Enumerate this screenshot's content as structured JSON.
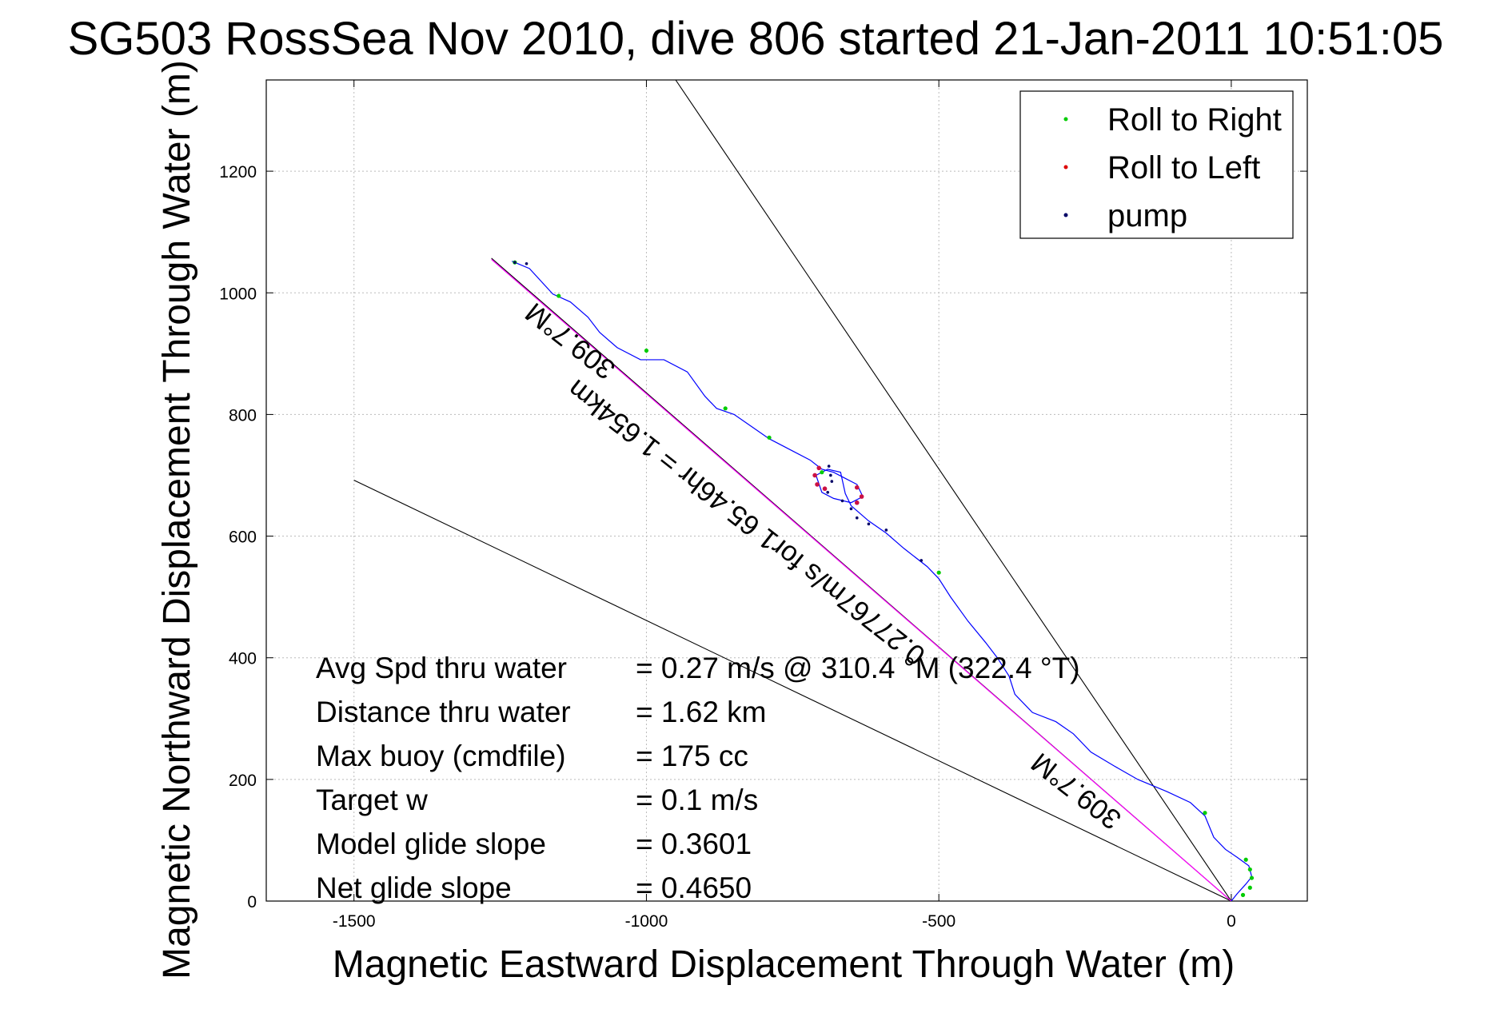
{
  "chart_data": {
    "type": "scatter",
    "title": "SG503 RossSea Nov 2010, dive 806 started 21-Jan-2011 10:51:05",
    "xlabel": "Magnetic Eastward Displacement Through Water (m)",
    "ylabel": "Magnetic Northward Displacement Through Water (m)",
    "xlim": [
      -1650,
      130
    ],
    "ylim": [
      0,
      1350
    ],
    "xticks": [
      -1500,
      -1000,
      -500,
      0
    ],
    "xtick_labels": [
      "-1500",
      "-1000",
      "-500",
      "0"
    ],
    "yticks": [
      0,
      200,
      400,
      600,
      800,
      1000,
      1200
    ],
    "ytick_labels": [
      "0",
      "200",
      "400",
      "600",
      "800",
      "1000",
      "1200"
    ],
    "grid": true,
    "legend_position": "top-right",
    "legend": [
      {
        "label": "Roll to Right",
        "color": "#00cc00"
      },
      {
        "label": "Roll to Left",
        "color": "#dd0000"
      },
      {
        "label": "pump",
        "color": "#000066"
      }
    ],
    "track": {
      "name": "",
      "color": "#0000ff",
      "points": [
        [
          0,
          0
        ],
        [
          10,
          12
        ],
        [
          25,
          28
        ],
        [
          35,
          40
        ],
        [
          30,
          58
        ],
        [
          10,
          72
        ],
        [
          -10,
          85
        ],
        [
          -30,
          105
        ],
        [
          -45,
          140
        ],
        [
          -70,
          162
        ],
        [
          -110,
          180
        ],
        [
          -160,
          200
        ],
        [
          -200,
          222
        ],
        [
          -240,
          245
        ],
        [
          -270,
          275
        ],
        [
          -300,
          295
        ],
        [
          -340,
          310
        ],
        [
          -370,
          340
        ],
        [
          -380,
          370
        ],
        [
          -400,
          400
        ],
        [
          -420,
          425
        ],
        [
          -450,
          460
        ],
        [
          -480,
          500
        ],
        [
          -500,
          530
        ],
        [
          -520,
          550
        ],
        [
          -560,
          580
        ],
        [
          -590,
          605
        ],
        [
          -620,
          625
        ],
        [
          -650,
          650
        ],
        [
          -660,
          670
        ],
        [
          -668,
          705
        ],
        [
          -690,
          710
        ],
        [
          -710,
          700
        ],
        [
          -700,
          672
        ],
        [
          -680,
          662
        ],
        [
          -650,
          655
        ],
        [
          -630,
          665
        ],
        [
          -640,
          685
        ],
        [
          -660,
          695
        ],
        [
          -680,
          705
        ],
        [
          -700,
          710
        ],
        [
          -720,
          725
        ],
        [
          -750,
          740
        ],
        [
          -790,
          760
        ],
        [
          -820,
          780
        ],
        [
          -850,
          800
        ],
        [
          -880,
          810
        ],
        [
          -900,
          830
        ],
        [
          -930,
          870
        ],
        [
          -970,
          890
        ],
        [
          -1010,
          890
        ],
        [
          -1050,
          910
        ],
        [
          -1080,
          935
        ],
        [
          -1100,
          960
        ],
        [
          -1130,
          985
        ],
        [
          -1160,
          998
        ],
        [
          -1200,
          1040
        ],
        [
          -1225,
          1050
        ],
        [
          -1230,
          1052
        ]
      ]
    },
    "roll_right_points": [
      [
        -1225,
        1050
      ],
      [
        -1150,
        995
      ],
      [
        -1000,
        905
      ],
      [
        -865,
        810
      ],
      [
        -790,
        762
      ],
      [
        -700,
        705
      ],
      [
        -500,
        540
      ],
      [
        -45,
        145
      ],
      [
        25,
        68
      ],
      [
        32,
        52
      ],
      [
        35,
        38
      ],
      [
        32,
        22
      ],
      [
        20,
        10
      ]
    ],
    "roll_left_points": [
      [
        -705,
        712
      ],
      [
        -712,
        700
      ],
      [
        -708,
        685
      ],
      [
        -695,
        678
      ],
      [
        -640,
        680
      ],
      [
        -632,
        665
      ],
      [
        -640,
        655
      ]
    ],
    "pump_points": [
      [
        -1225,
        1050
      ],
      [
        -1205,
        1048
      ],
      [
        -688,
        715
      ],
      [
        -685,
        700
      ],
      [
        -683,
        690
      ],
      [
        -690,
        672
      ],
      [
        -665,
        658
      ],
      [
        -650,
        645
      ],
      [
        -640,
        630
      ],
      [
        -620,
        620
      ],
      [
        -590,
        610
      ],
      [
        -530,
        560
      ]
    ],
    "reference_lines": [
      {
        "name": "",
        "color": "#000000",
        "points": [
          [
            0,
            0
          ],
          [
            -950,
            1350
          ]
        ]
      },
      {
        "name": "",
        "color": "#000000",
        "points": [
          [
            0,
            0
          ],
          [
            -1500,
            692
          ]
        ]
      },
      {
        "name": "",
        "color": "#000000",
        "points": [
          [
            0,
            0
          ],
          [
            -1265,
            1057
          ]
        ]
      }
    ],
    "slope_line": {
      "color": "#ff00ff",
      "points": [
        [
          0,
          0
        ],
        [
          -1265,
          1055
        ]
      ]
    },
    "line_labels": [
      {
        "text": "309.7°M",
        "anchor": [
          -1050,
          880
        ],
        "rotation": 218
      },
      {
        "text": "0.27767m/s for1 65.46hr = 1.654km",
        "anchor": [
          -520,
          410
        ],
        "rotation": 218
      },
      {
        "text": "309.7°M",
        "anchor": [
          -185,
          140
        ],
        "rotation": 218
      }
    ],
    "annotations": [
      {
        "label": "Avg Spd thru water",
        "value": "=  0.27 m/s @ 310.4 °M (322.4 °T)"
      },
      {
        "label": "Distance thru water",
        "value": "=  1.62 km"
      },
      {
        "label": "Max buoy (cmdfile)",
        "value": "= 175 cc"
      },
      {
        "label": "Target w",
        "value": "= 0.1 m/s"
      },
      {
        "label": "Model glide slope",
        "value": "= 0.3601"
      },
      {
        "label": "Net glide slope",
        "value": "= 0.4650"
      }
    ]
  }
}
